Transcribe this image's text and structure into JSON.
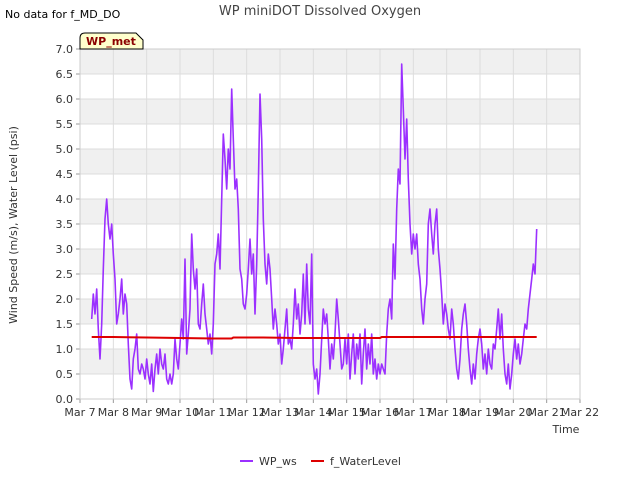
{
  "no_data_note": "No data for f_MD_DO",
  "site_tag": "WP_met",
  "chart_data": {
    "type": "line",
    "title": "WP miniDOT Dissolved Oxygen",
    "xlabel": "Time",
    "ylabel": "Wind Speed (m/s), Water Level (psi)",
    "xlim": [
      7,
      22
    ],
    "ylim": [
      0,
      7
    ],
    "x_ticks": [
      {
        "v": 7,
        "label": "Mar 7"
      },
      {
        "v": 8,
        "label": "Mar 8"
      },
      {
        "v": 9,
        "label": "Mar 9"
      },
      {
        "v": 10,
        "label": "Mar 10"
      },
      {
        "v": 11,
        "label": "Mar 11"
      },
      {
        "v": 12,
        "label": "Mar 12"
      },
      {
        "v": 13,
        "label": "Mar 13"
      },
      {
        "v": 14,
        "label": "Mar 14"
      },
      {
        "v": 15,
        "label": "Mar 15"
      },
      {
        "v": 16,
        "label": "Mar 16"
      },
      {
        "v": 17,
        "label": "Mar 17"
      },
      {
        "v": 18,
        "label": "Mar 18"
      },
      {
        "v": 19,
        "label": "Mar 19"
      },
      {
        "v": 20,
        "label": "Mar 20"
      },
      {
        "v": 21,
        "label": "Mar 21"
      },
      {
        "v": 22,
        "label": "Mar 22"
      }
    ],
    "y_ticks": [
      {
        "v": 0,
        "label": "0.0"
      },
      {
        "v": 0.5,
        "label": "0.5"
      },
      {
        "v": 1,
        "label": "1.0"
      },
      {
        "v": 1.5,
        "label": "1.5"
      },
      {
        "v": 2,
        "label": "2.0"
      },
      {
        "v": 2.5,
        "label": "2.5"
      },
      {
        "v": 3,
        "label": "3.0"
      },
      {
        "v": 3.5,
        "label": "3.5"
      },
      {
        "v": 4,
        "label": "4.0"
      },
      {
        "v": 4.5,
        "label": "4.5"
      },
      {
        "v": 5,
        "label": "5.0"
      },
      {
        "v": 5.5,
        "label": "5.5"
      },
      {
        "v": 6,
        "label": "6.0"
      },
      {
        "v": 6.5,
        "label": "6.5"
      },
      {
        "v": 7,
        "label": "7.0"
      }
    ],
    "grid": true,
    "legend_position": "bottom",
    "series": [
      {
        "name": "WP_ws",
        "color": "#9b30ff",
        "points": [
          [
            7.35,
            1.6
          ],
          [
            7.4,
            2.1
          ],
          [
            7.45,
            1.7
          ],
          [
            7.5,
            2.2
          ],
          [
            7.55,
            1.4
          ],
          [
            7.6,
            0.8
          ],
          [
            7.65,
            1.5
          ],
          [
            7.7,
            2.6
          ],
          [
            7.75,
            3.6
          ],
          [
            7.8,
            4.0
          ],
          [
            7.85,
            3.5
          ],
          [
            7.9,
            3.2
          ],
          [
            7.95,
            3.5
          ],
          [
            8.0,
            2.9
          ],
          [
            8.05,
            2.4
          ],
          [
            8.1,
            1.5
          ],
          [
            8.15,
            1.7
          ],
          [
            8.2,
            2.0
          ],
          [
            8.25,
            2.4
          ],
          [
            8.3,
            1.7
          ],
          [
            8.35,
            2.1
          ],
          [
            8.4,
            1.9
          ],
          [
            8.45,
            1.1
          ],
          [
            8.5,
            0.4
          ],
          [
            8.55,
            0.2
          ],
          [
            8.6,
            0.8
          ],
          [
            8.65,
            1.0
          ],
          [
            8.7,
            1.3
          ],
          [
            8.75,
            0.6
          ],
          [
            8.8,
            0.5
          ],
          [
            8.85,
            0.7
          ],
          [
            8.9,
            0.6
          ],
          [
            8.95,
            0.4
          ],
          [
            9.0,
            0.8
          ],
          [
            9.05,
            0.5
          ],
          [
            9.1,
            0.3
          ],
          [
            9.15,
            0.7
          ],
          [
            9.2,
            0.15
          ],
          [
            9.25,
            0.6
          ],
          [
            9.3,
            0.9
          ],
          [
            9.35,
            0.5
          ],
          [
            9.4,
            1.0
          ],
          [
            9.45,
            0.7
          ],
          [
            9.5,
            0.6
          ],
          [
            9.55,
            0.9
          ],
          [
            9.6,
            0.4
          ],
          [
            9.65,
            0.3
          ],
          [
            9.7,
            0.5
          ],
          [
            9.75,
            0.3
          ],
          [
            9.8,
            0.5
          ],
          [
            9.85,
            1.2
          ],
          [
            9.9,
            0.8
          ],
          [
            9.95,
            0.6
          ],
          [
            10.0,
            1.1
          ],
          [
            10.05,
            1.6
          ],
          [
            10.1,
            1.2
          ],
          [
            10.15,
            2.8
          ],
          [
            10.2,
            0.9
          ],
          [
            10.25,
            1.3
          ],
          [
            10.3,
            1.8
          ],
          [
            10.35,
            3.3
          ],
          [
            10.4,
            2.6
          ],
          [
            10.45,
            2.2
          ],
          [
            10.5,
            2.6
          ],
          [
            10.55,
            1.5
          ],
          [
            10.6,
            1.4
          ],
          [
            10.65,
            1.9
          ],
          [
            10.7,
            2.3
          ],
          [
            10.75,
            1.7
          ],
          [
            10.8,
            1.4
          ],
          [
            10.85,
            1.1
          ],
          [
            10.9,
            1.3
          ],
          [
            10.95,
            0.9
          ],
          [
            11.0,
            1.5
          ],
          [
            11.05,
            2.7
          ],
          [
            11.1,
            2.9
          ],
          [
            11.15,
            3.3
          ],
          [
            11.2,
            2.6
          ],
          [
            11.25,
            4.0
          ],
          [
            11.3,
            5.3
          ],
          [
            11.35,
            4.8
          ],
          [
            11.4,
            4.2
          ],
          [
            11.45,
            5.0
          ],
          [
            11.5,
            4.6
          ],
          [
            11.55,
            6.2
          ],
          [
            11.6,
            5.2
          ],
          [
            11.65,
            4.2
          ],
          [
            11.7,
            4.4
          ],
          [
            11.75,
            3.8
          ],
          [
            11.8,
            2.6
          ],
          [
            11.85,
            2.4
          ],
          [
            11.9,
            1.9
          ],
          [
            11.95,
            1.8
          ],
          [
            12.0,
            2.1
          ],
          [
            12.05,
            2.6
          ],
          [
            12.1,
            3.2
          ],
          [
            12.15,
            2.5
          ],
          [
            12.2,
            2.9
          ],
          [
            12.25,
            1.7
          ],
          [
            12.3,
            2.7
          ],
          [
            12.35,
            4.2
          ],
          [
            12.4,
            6.1
          ],
          [
            12.45,
            5.2
          ],
          [
            12.5,
            3.6
          ],
          [
            12.55,
            2.7
          ],
          [
            12.6,
            2.3
          ],
          [
            12.65,
            2.9
          ],
          [
            12.7,
            2.6
          ],
          [
            12.75,
            2.0
          ],
          [
            12.8,
            1.4
          ],
          [
            12.85,
            1.8
          ],
          [
            12.9,
            1.5
          ],
          [
            12.95,
            1.1
          ],
          [
            13.0,
            1.3
          ],
          [
            13.05,
            0.7
          ],
          [
            13.1,
            1.0
          ],
          [
            13.15,
            1.4
          ],
          [
            13.2,
            1.8
          ],
          [
            13.25,
            1.1
          ],
          [
            13.3,
            1.2
          ],
          [
            13.35,
            1.0
          ],
          [
            13.4,
            1.5
          ],
          [
            13.45,
            2.2
          ],
          [
            13.5,
            1.6
          ],
          [
            13.55,
            1.9
          ],
          [
            13.6,
            1.3
          ],
          [
            13.65,
            1.7
          ],
          [
            13.7,
            2.5
          ],
          [
            13.75,
            1.5
          ],
          [
            13.8,
            2.7
          ],
          [
            13.85,
            1.8
          ],
          [
            13.9,
            1.5
          ],
          [
            13.95,
            2.9
          ],
          [
            14.0,
            0.7
          ],
          [
            14.05,
            0.4
          ],
          [
            14.1,
            0.6
          ],
          [
            14.15,
            0.1
          ],
          [
            14.2,
            0.5
          ],
          [
            14.25,
            1.2
          ],
          [
            14.3,
            1.8
          ],
          [
            14.35,
            1.5
          ],
          [
            14.4,
            1.7
          ],
          [
            14.45,
            1.2
          ],
          [
            14.5,
            0.6
          ],
          [
            14.55,
            1.1
          ],
          [
            14.6,
            0.8
          ],
          [
            14.65,
            1.3
          ],
          [
            14.7,
            2.0
          ],
          [
            14.75,
            1.6
          ],
          [
            14.8,
            1.1
          ],
          [
            14.85,
            0.6
          ],
          [
            14.9,
            0.7
          ],
          [
            14.95,
            1.2
          ],
          [
            15.0,
            0.7
          ],
          [
            15.05,
            1.3
          ],
          [
            15.1,
            0.4
          ],
          [
            15.15,
            0.9
          ],
          [
            15.2,
            1.3
          ],
          [
            15.25,
            0.5
          ],
          [
            15.3,
            1.1
          ],
          [
            15.35,
            0.8
          ],
          [
            15.4,
            1.3
          ],
          [
            15.45,
            0.3
          ],
          [
            15.5,
            0.9
          ],
          [
            15.55,
            1.4
          ],
          [
            15.6,
            0.6
          ],
          [
            15.65,
            1.1
          ],
          [
            15.7,
            0.7
          ],
          [
            15.75,
            1.3
          ],
          [
            15.8,
            0.5
          ],
          [
            15.85,
            0.8
          ],
          [
            15.9,
            0.4
          ],
          [
            15.95,
            0.7
          ],
          [
            16.0,
            0.5
          ],
          [
            16.05,
            0.7
          ],
          [
            16.1,
            0.6
          ],
          [
            16.15,
            0.5
          ],
          [
            16.2,
            1.3
          ],
          [
            16.25,
            1.8
          ],
          [
            16.3,
            2.0
          ],
          [
            16.35,
            1.6
          ],
          [
            16.4,
            3.1
          ],
          [
            16.45,
            2.4
          ],
          [
            16.5,
            3.8
          ],
          [
            16.55,
            4.6
          ],
          [
            16.6,
            4.3
          ],
          [
            16.65,
            6.7
          ],
          [
            16.7,
            5.8
          ],
          [
            16.75,
            4.8
          ],
          [
            16.8,
            5.6
          ],
          [
            16.85,
            4.4
          ],
          [
            16.9,
            3.5
          ],
          [
            16.95,
            2.9
          ],
          [
            17.0,
            3.3
          ],
          [
            17.05,
            3.0
          ],
          [
            17.1,
            3.3
          ],
          [
            17.15,
            2.7
          ],
          [
            17.2,
            2.4
          ],
          [
            17.25,
            1.8
          ],
          [
            17.3,
            1.5
          ],
          [
            17.35,
            2.0
          ],
          [
            17.4,
            2.3
          ],
          [
            17.45,
            3.5
          ],
          [
            17.5,
            3.8
          ],
          [
            17.55,
            3.3
          ],
          [
            17.6,
            2.9
          ],
          [
            17.65,
            3.5
          ],
          [
            17.7,
            3.8
          ],
          [
            17.75,
            3.0
          ],
          [
            17.8,
            2.6
          ],
          [
            17.85,
            2.1
          ],
          [
            17.9,
            1.5
          ],
          [
            17.95,
            1.9
          ],
          [
            18.0,
            1.7
          ],
          [
            18.05,
            1.4
          ],
          [
            18.1,
            1.2
          ],
          [
            18.15,
            1.8
          ],
          [
            18.2,
            1.5
          ],
          [
            18.25,
            1.0
          ],
          [
            18.3,
            0.6
          ],
          [
            18.35,
            0.4
          ],
          [
            18.4,
            0.8
          ],
          [
            18.45,
            1.4
          ],
          [
            18.5,
            1.7
          ],
          [
            18.55,
            1.9
          ],
          [
            18.6,
            1.5
          ],
          [
            18.65,
            1.0
          ],
          [
            18.7,
            0.6
          ],
          [
            18.75,
            0.3
          ],
          [
            18.8,
            0.7
          ],
          [
            18.85,
            0.4
          ],
          [
            18.9,
            0.9
          ],
          [
            18.95,
            1.2
          ],
          [
            19.0,
            1.4
          ],
          [
            19.05,
            1.1
          ],
          [
            19.1,
            0.6
          ],
          [
            19.15,
            0.9
          ],
          [
            19.2,
            0.5
          ],
          [
            19.25,
            1.0
          ],
          [
            19.3,
            0.7
          ],
          [
            19.35,
            0.6
          ],
          [
            19.4,
            1.1
          ],
          [
            19.45,
            1.0
          ],
          [
            19.5,
            1.4
          ],
          [
            19.55,
            1.8
          ],
          [
            19.6,
            1.2
          ],
          [
            19.65,
            1.7
          ],
          [
            19.7,
            1.0
          ],
          [
            19.75,
            0.5
          ],
          [
            19.8,
            0.3
          ],
          [
            19.85,
            0.7
          ],
          [
            19.9,
            0.2
          ],
          [
            19.95,
            0.5
          ],
          [
            20.0,
            0.9
          ],
          [
            20.05,
            1.2
          ],
          [
            20.1,
            0.8
          ],
          [
            20.15,
            1.1
          ],
          [
            20.2,
            0.7
          ],
          [
            20.25,
            0.9
          ],
          [
            20.3,
            1.2
          ],
          [
            20.35,
            1.5
          ],
          [
            20.4,
            1.4
          ],
          [
            20.45,
            1.8
          ],
          [
            20.5,
            2.1
          ],
          [
            20.55,
            2.4
          ],
          [
            20.6,
            2.7
          ],
          [
            20.65,
            2.5
          ],
          [
            20.7,
            3.4
          ]
        ]
      },
      {
        "name": "f_WaterLevel",
        "color": "#dd0000",
        "points": [
          [
            7.35,
            1.24
          ],
          [
            8.0,
            1.24
          ],
          [
            9.0,
            1.23
          ],
          [
            10.0,
            1.22
          ],
          [
            11.0,
            1.21
          ],
          [
            11.55,
            1.21
          ],
          [
            11.6,
            1.23
          ],
          [
            12.5,
            1.23
          ],
          [
            13.5,
            1.22
          ],
          [
            14.5,
            1.22
          ],
          [
            15.5,
            1.22
          ],
          [
            16.0,
            1.22
          ],
          [
            16.05,
            1.24
          ],
          [
            17.0,
            1.24
          ],
          [
            18.0,
            1.24
          ],
          [
            19.0,
            1.24
          ],
          [
            20.0,
            1.24
          ],
          [
            20.7,
            1.24
          ]
        ]
      }
    ]
  }
}
